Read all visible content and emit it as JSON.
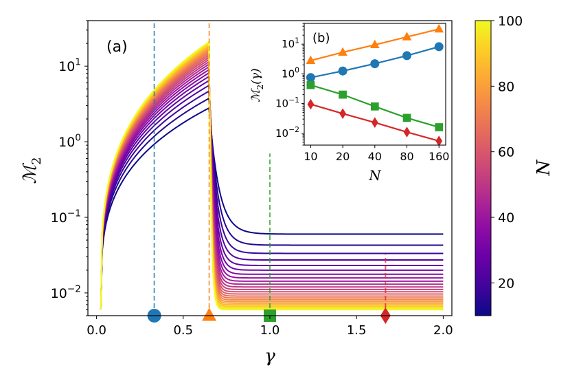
{
  "chart_data": [
    {
      "type": "line",
      "panel_label": "(a)",
      "xlabel": "γ",
      "ylabel_symbol": "ℳ",
      "ylabel_sub": "2",
      "yscale": "log",
      "xlim": [
        -0.05,
        2.05
      ],
      "ylim": [
        0.005,
        40
      ],
      "x_ticks": [
        0.0,
        0.5,
        1.0,
        1.5,
        2.0
      ],
      "x_tick_labels": [
        "0.0",
        "0.5",
        "1.0",
        "1.5",
        "2.0"
      ],
      "y_ticks": [
        0.01,
        0.1,
        1,
        10
      ],
      "y_tick_labels": [
        {
          "base": "10",
          "exp": "−2"
        },
        {
          "base": "10",
          "exp": "−1"
        },
        {
          "base": "10",
          "exp": "0"
        },
        {
          "base": "10",
          "exp": "1"
        }
      ],
      "family": {
        "parameter": "N",
        "N_values": [
          10,
          14,
          18,
          22,
          26,
          30,
          34,
          38,
          42,
          46,
          50,
          54,
          58,
          62,
          66,
          70,
          74,
          78,
          82,
          86,
          90,
          94,
          98,
          100
        ],
        "gamma_range": [
          0.025,
          2.0
        ],
        "gamma_peak": 0.65,
        "peak_value_at_N10": 2.8,
        "peak_value_at_N100": 21,
        "value_at_gamma2_N10": 0.06,
        "value_at_gamma2_N100": 0.006,
        "value_at_gamma0.025": 0.006
      },
      "markers": [
        {
          "name": "circle",
          "gamma": 0.333,
          "value": 0.005,
          "color": "#1f77b4"
        },
        {
          "name": "triangle",
          "gamma": 0.65,
          "value": 0.005,
          "color": "#ff7f0e"
        },
        {
          "name": "square",
          "gamma": 1.0,
          "value": 0.005,
          "color": "#2ca02c"
        },
        {
          "name": "diamond",
          "gamma": 1.667,
          "value": 0.005,
          "color": "#d62728"
        }
      ],
      "vlines": [
        {
          "gamma": 0.333,
          "color": "#1f77b4",
          "y_top": 40
        },
        {
          "gamma": 0.65,
          "color": "#ff7f0e",
          "y_top": 40
        },
        {
          "gamma": 1.0,
          "color": "#2ca02c",
          "y_top": 0.7
        },
        {
          "gamma": 1.667,
          "color": "#d62728",
          "y_top": 0.032
        }
      ]
    },
    {
      "type": "line",
      "panel_label": "(b)",
      "xlabel": "N",
      "ylabel_symbol": "ℳ",
      "ylabel_sub": "2",
      "ylabel_arg": "(γ)",
      "xscale": "log",
      "yscale": "log",
      "xlim": [
        8.7,
        185
      ],
      "ylim": [
        0.004,
        50
      ],
      "x": [
        10,
        20,
        40,
        80,
        160
      ],
      "x_tick_labels": [
        "10",
        "20",
        "40",
        "80",
        "160"
      ],
      "y_ticks": [
        0.01,
        0.1,
        1,
        10
      ],
      "y_tick_labels": [
        {
          "base": "10",
          "exp": "−2"
        },
        {
          "base": "10",
          "exp": "−1"
        },
        {
          "base": "10",
          "exp": "0"
        },
        {
          "base": "10",
          "exp": "1"
        }
      ],
      "series": [
        {
          "name": "triangle",
          "color": "#ff7f0e",
          "values": [
            2.8,
            5.3,
            9.5,
            17.5,
            32
          ]
        },
        {
          "name": "circle",
          "color": "#1f77b4",
          "values": [
            0.75,
            1.25,
            2.2,
            4.1,
            8.2
          ]
        },
        {
          "name": "square",
          "color": "#2ca02c",
          "values": [
            0.42,
            0.2,
            0.08,
            0.033,
            0.016
          ]
        },
        {
          "name": "diamond",
          "color": "#d62728",
          "values": [
            0.095,
            0.046,
            0.023,
            0.011,
            0.0055
          ]
        }
      ]
    }
  ],
  "colorbar": {
    "label": "N",
    "min": 10,
    "max": 100,
    "ticks": [
      20,
      40,
      60,
      80,
      100
    ],
    "tick_labels": [
      "20",
      "40",
      "60",
      "80",
      "100"
    ],
    "colormap": "plasma"
  }
}
